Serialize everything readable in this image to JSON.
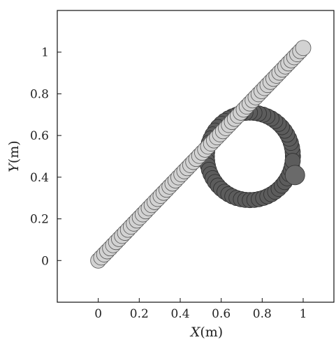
{
  "chart_data": {
    "type": "scatter",
    "title": "",
    "xlabel_var": "X",
    "xlabel_unit": "(m)",
    "ylabel_var": "Y",
    "ylabel_unit": "(m)",
    "xlim": [
      -0.2,
      1.15
    ],
    "ylim": [
      -0.2,
      1.2
    ],
    "x_ticks": [
      0,
      0.2,
      0.4,
      0.6,
      0.8,
      1
    ],
    "x_tick_labels": [
      "0",
      "0.2",
      "0.4",
      "0.6",
      "0.8",
      "1"
    ],
    "y_ticks": [
      0,
      0.2,
      0.4,
      0.6,
      0.8,
      1
    ],
    "y_tick_labels": [
      "0",
      "0.2",
      "0.4",
      "0.6",
      "0.8",
      "1"
    ],
    "grid": false,
    "legend": "none",
    "series": [
      {
        "marker": "circle",
        "color": "#d2d2d2",
        "edge_color": "#555555",
        "start": [
          0.0,
          0.0
        ],
        "end": [
          1.0,
          1.02
        ],
        "count": 70
      },
      {
        "marker": "circle",
        "color": "#5c5c5c",
        "edge_color": "#2e2e2e",
        "center": [
          0.74,
          0.5
        ],
        "radius": 0.21,
        "count": 60,
        "final_point": [
          0.96,
          0.41
        ]
      }
    ]
  }
}
